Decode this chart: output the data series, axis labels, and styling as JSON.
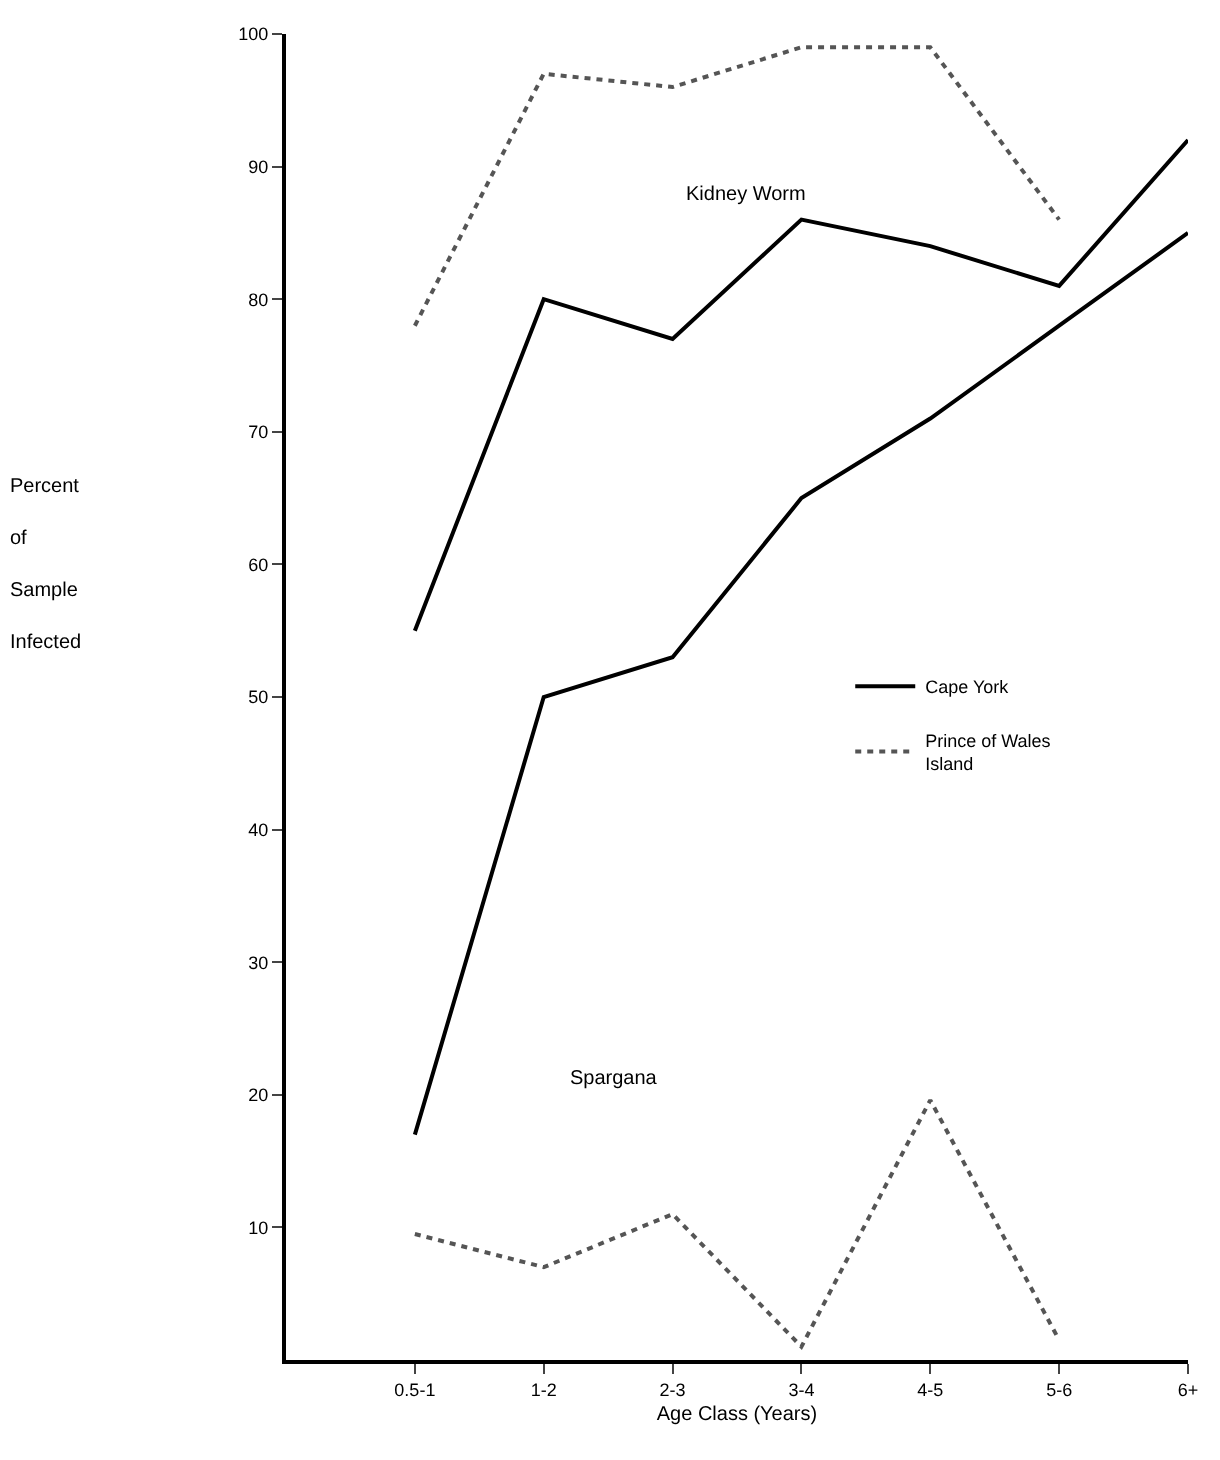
{
  "chart_data": {
    "type": "line",
    "xlabel": "Age Class (Years)",
    "ylabel": "Percent of Sample Infected",
    "categories": [
      "0.5-1",
      "1-2",
      "2-3",
      "3-4",
      "4-5",
      "5-6",
      "6+"
    ],
    "series": [
      {
        "name": "Cape York",
        "color": "#000000",
        "line_style": "solid",
        "values": [
          55,
          80,
          77,
          86,
          84,
          81,
          92
        ]
      },
      {
        "name": "Prince of Wales Island",
        "color": "#555555",
        "line_style": "dotted",
        "values": [
          78,
          97,
          96,
          99,
          99,
          86,
          null
        ]
      },
      {
        "color": "#000000",
        "line_style": "solid",
        "values": [
          17,
          50,
          53,
          65,
          71,
          78,
          85
        ]
      },
      {
        "color": "#555555",
        "line_style": "dotted",
        "values": [
          9.5,
          7,
          11,
          1,
          19.6,
          1.5,
          null
        ]
      }
    ],
    "annotations": [
      "Kidney Worm",
      "Spargana"
    ],
    "ylim": [
      0,
      100
    ],
    "yticks": [
      10,
      20,
      30,
      40,
      50,
      60,
      70,
      80,
      90,
      100
    ],
    "legend": "right",
    "marker": "none"
  }
}
